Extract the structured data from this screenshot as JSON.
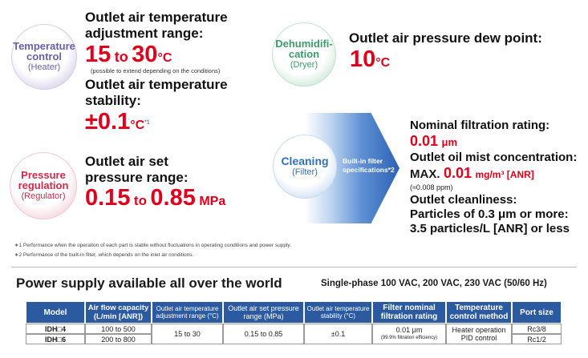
{
  "temp": {
    "circle_title": [
      "Temperature",
      "control"
    ],
    "circle_sub": "(Heater)",
    "head1": "Outlet air temperature",
    "head2": "adjustment range:",
    "range_from": "15",
    "range_to_word": "to",
    "range_to": "30",
    "range_unit": "°C",
    "range_note": "(possible to extend depending on the conditions)",
    "stab1": "Outlet air temperature",
    "stab2": "stability:",
    "stab_value": "±0.1",
    "stab_unit": "°C",
    "stab_mark": "*1"
  },
  "dehum": {
    "circle_title": [
      "Dehumidifi-",
      "cation"
    ],
    "circle_sub": "(Dryer)",
    "head": "Outlet air pressure dew point:",
    "value": "10",
    "unit": "°C"
  },
  "pressure": {
    "circle_title": [
      "Pressure",
      "regulation"
    ],
    "circle_sub": "(Regulator)",
    "head1": "Outlet air set",
    "head2": "pressure range:",
    "from": "0.15",
    "to_word": "to",
    "to": "0.85",
    "unit": "MPa"
  },
  "cleaning": {
    "circle_title": "Cleaning",
    "circle_sub": "(Filter)",
    "arrow_label1": "Built-in filter",
    "arrow_label2": "specifications*2",
    "nominal_head": "Nominal filtration rating:",
    "nominal_value": "0.01",
    "nominal_unit": "μm",
    "oil_head": "Outlet oil mist concentration:",
    "oil_prefix": "MAX.",
    "oil_value": "0.01",
    "oil_unit": "mg/m³ [ANR]",
    "oil_note": "(≈0.008 ppm)",
    "clean_head": "Outlet cleanliness:",
    "clean_line1": "Particles of 0.3 μm or more:",
    "clean_line2": "3.5 particles/L [ANR] or less"
  },
  "footnotes": [
    "∗1  Performance when the operation of each part is stable without fluctuations in operating conditions and power supply.",
    "∗2  Performance of the built-in filter, which depends on the inlet air conditions."
  ],
  "power": {
    "title": "Power supply available all over the world",
    "subtitle": "Single-phase 100 VAC, 200 VAC, 230 VAC (50/60 Hz)"
  },
  "table": {
    "headers": [
      "Model",
      "Air flow capacity (L/min [ANR])",
      "Outlet air temperature adjustment range (°C)",
      "Outlet air set pressure range (MPa)",
      "Outlet air temperature stability (°C)",
      "Filter nominal filtration rating",
      "Temperature control method",
      "Port size"
    ],
    "rows": [
      {
        "model": "IDH□4",
        "flow": "100 to 500",
        "port": "Rc3/8"
      },
      {
        "model": "IDH□6",
        "flow": "200 to 800",
        "port": "Rc1/2"
      }
    ],
    "shared": {
      "temp_range": "15 to 30",
      "pressure_range": "0.15 to 0.85",
      "stability": "±0.1",
      "filter_value": "0.01 μm",
      "filter_note": "(99.9% filtration efficiency)",
      "method1": "Heater operation",
      "method2": "PID control"
    }
  }
}
